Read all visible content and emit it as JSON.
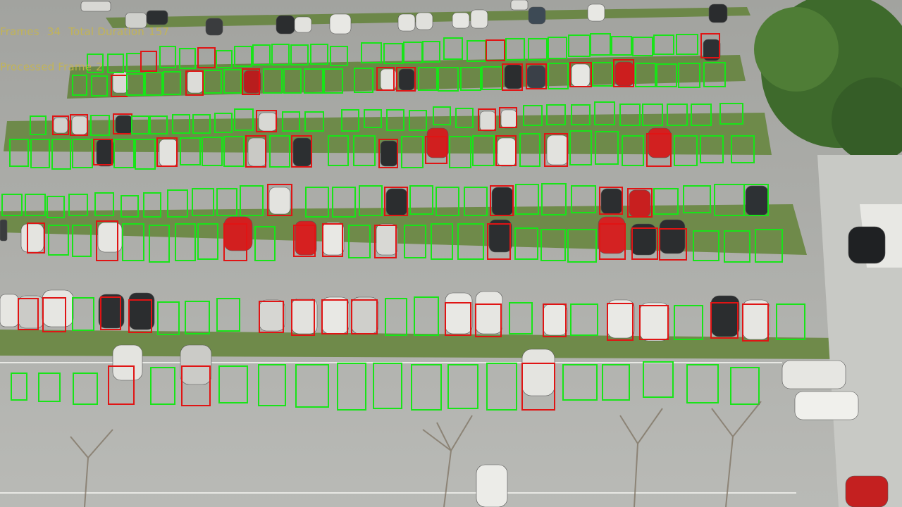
{
  "overlay": {
    "frames_label": "Frames ",
    "frames_value": "34",
    "duration_label": "Total Duration",
    "duration_value": "157",
    "processed_label": "Processed Frame",
    "processed_value": "2"
  },
  "colors": {
    "free_spot": "#18e418",
    "occupied_spot": "#e01414",
    "pavement": "#9b9d9a",
    "grass": "#6f8a4a",
    "tree": "#3f6b2e"
  },
  "legend": {
    "free_spot_color_meaning": "green",
    "occupied_spot_color_meaning": "red"
  }
}
